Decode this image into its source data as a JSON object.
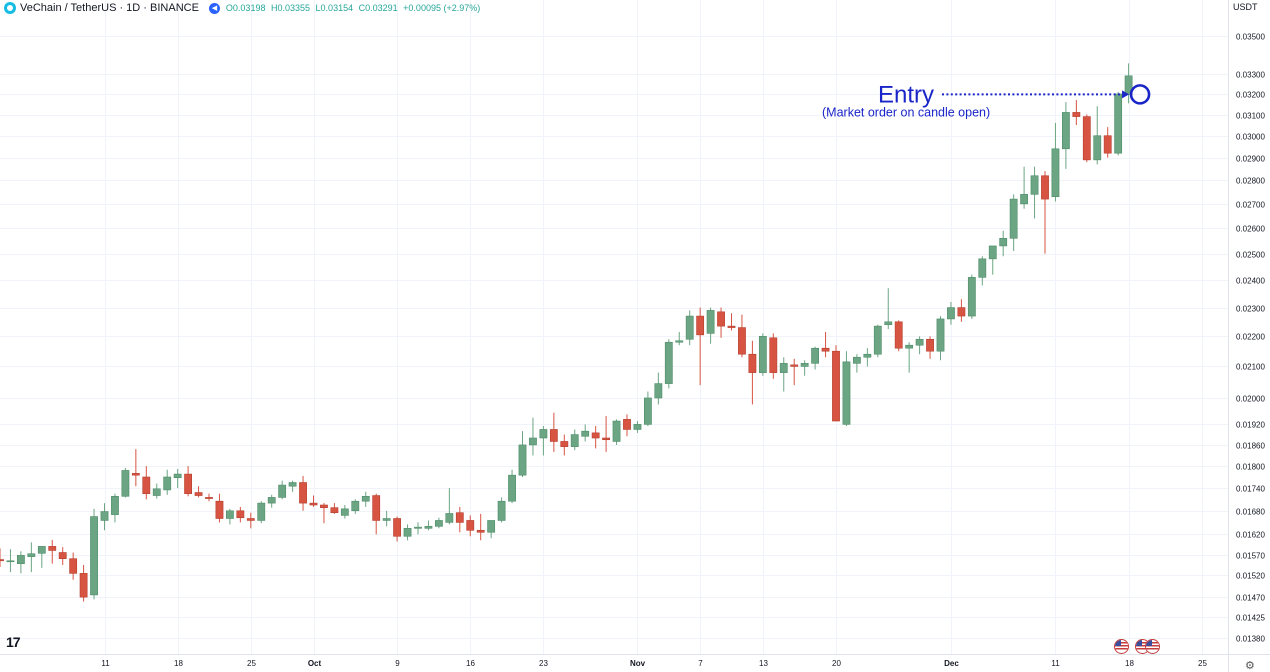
{
  "header": {
    "symbol_title": "VeChain / TetherUS · 1D · BINANCE",
    "ohlc": {
      "open": "O0.03198",
      "high": "H0.03355",
      "low": "L0.03154",
      "close": "C0.03291",
      "change": "+0.00095 (+2.97%)"
    },
    "currency": "USDT",
    "symbol_icon": "vechain-logo-icon",
    "control_icon": "rewind-icon"
  },
  "footer": {
    "brand": "17",
    "settings_icon": "gear-icon",
    "event_icons": [
      "us-flag-icon",
      "us-flag-icon",
      "us-flag-icon"
    ]
  },
  "colors": {
    "up": "#6ba583",
    "down": "#d75442",
    "annotation": "#1a25c8",
    "grid": "#f0f3fa"
  },
  "chart_data": {
    "type": "candlestick",
    "y_scale": "log",
    "y_ticks": [
      "0.03500",
      "0.03300",
      "0.03200",
      "0.03100",
      "0.03000",
      "0.02900",
      "0.02800",
      "0.02700",
      "0.02600",
      "0.02500",
      "0.02400",
      "0.02300",
      "0.02200",
      "0.02100",
      "0.02000",
      "0.01920",
      "0.01860",
      "0.01800",
      "0.01740",
      "0.01680",
      "0.01620",
      "0.01570",
      "0.01520",
      "0.01470",
      "0.01425",
      "0.01380"
    ],
    "x_ticks": [
      "11",
      "18",
      "25",
      "Oct",
      "9",
      "16",
      "23",
      "Nov",
      "7",
      "13",
      "20",
      "Dec",
      "11",
      "18",
      "25"
    ],
    "x_tick_days": [
      10,
      17,
      24,
      30,
      38,
      45,
      52,
      61,
      67,
      73,
      80,
      91,
      101,
      108,
      115
    ],
    "start_date": "2023-09-01",
    "candles": [
      {
        "o": 0.01558,
        "h": 0.01585,
        "l": 0.0154,
        "c": 0.01555
      },
      {
        "o": 0.01553,
        "h": 0.01583,
        "l": 0.01528,
        "c": 0.01555
      },
      {
        "o": 0.01548,
        "h": 0.01578,
        "l": 0.01525,
        "c": 0.01568
      },
      {
        "o": 0.01565,
        "h": 0.016,
        "l": 0.01528,
        "c": 0.01572
      },
      {
        "o": 0.01573,
        "h": 0.0159,
        "l": 0.01538,
        "c": 0.0159
      },
      {
        "o": 0.0159,
        "h": 0.01606,
        "l": 0.01548,
        "c": 0.0158
      },
      {
        "o": 0.01575,
        "h": 0.01588,
        "l": 0.01545,
        "c": 0.0156
      },
      {
        "o": 0.0156,
        "h": 0.01575,
        "l": 0.0151,
        "c": 0.01525
      },
      {
        "o": 0.01525,
        "h": 0.01545,
        "l": 0.0146,
        "c": 0.0147
      },
      {
        "o": 0.01475,
        "h": 0.01685,
        "l": 0.01465,
        "c": 0.01665
      },
      {
        "o": 0.01655,
        "h": 0.017,
        "l": 0.0163,
        "c": 0.01678
      },
      {
        "o": 0.0167,
        "h": 0.01725,
        "l": 0.0165,
        "c": 0.01718
      },
      {
        "o": 0.01718,
        "h": 0.01795,
        "l": 0.01715,
        "c": 0.01788
      },
      {
        "o": 0.0178,
        "h": 0.01848,
        "l": 0.01745,
        "c": 0.01775
      },
      {
        "o": 0.0177,
        "h": 0.018,
        "l": 0.0171,
        "c": 0.01725
      },
      {
        "o": 0.0172,
        "h": 0.01752,
        "l": 0.01712,
        "c": 0.01738
      },
      {
        "o": 0.01735,
        "h": 0.0179,
        "l": 0.01722,
        "c": 0.0177
      },
      {
        "o": 0.01768,
        "h": 0.01792,
        "l": 0.0174,
        "c": 0.01778
      },
      {
        "o": 0.01778,
        "h": 0.018,
        "l": 0.01718,
        "c": 0.01725
      },
      {
        "o": 0.01728,
        "h": 0.01745,
        "l": 0.01715,
        "c": 0.0172
      },
      {
        "o": 0.01715,
        "h": 0.01725,
        "l": 0.01705,
        "c": 0.01712
      },
      {
        "o": 0.01705,
        "h": 0.01725,
        "l": 0.0165,
        "c": 0.0166
      },
      {
        "o": 0.0166,
        "h": 0.01685,
        "l": 0.01645,
        "c": 0.0168
      },
      {
        "o": 0.0168,
        "h": 0.0169,
        "l": 0.0165,
        "c": 0.01662
      },
      {
        "o": 0.0166,
        "h": 0.01675,
        "l": 0.01635,
        "c": 0.01655
      },
      {
        "o": 0.01655,
        "h": 0.01705,
        "l": 0.01648,
        "c": 0.017
      },
      {
        "o": 0.017,
        "h": 0.01722,
        "l": 0.01688,
        "c": 0.01715
      },
      {
        "o": 0.01715,
        "h": 0.0176,
        "l": 0.0171,
        "c": 0.01748
      },
      {
        "o": 0.01745,
        "h": 0.0176,
        "l": 0.0173,
        "c": 0.01755
      },
      {
        "o": 0.01755,
        "h": 0.01773,
        "l": 0.0168,
        "c": 0.017
      },
      {
        "o": 0.017,
        "h": 0.0172,
        "l": 0.0169,
        "c": 0.01695
      },
      {
        "o": 0.01695,
        "h": 0.017,
        "l": 0.01648,
        "c": 0.01688
      },
      {
        "o": 0.01688,
        "h": 0.017,
        "l": 0.01672,
        "c": 0.01675
      },
      {
        "o": 0.01668,
        "h": 0.01695,
        "l": 0.0166,
        "c": 0.01685
      },
      {
        "o": 0.0168,
        "h": 0.0171,
        "l": 0.01672,
        "c": 0.01705
      },
      {
        "o": 0.01705,
        "h": 0.0173,
        "l": 0.0169,
        "c": 0.01718
      },
      {
        "o": 0.0172,
        "h": 0.01725,
        "l": 0.0162,
        "c": 0.01655
      },
      {
        "o": 0.01655,
        "h": 0.0168,
        "l": 0.0164,
        "c": 0.0166
      },
      {
        "o": 0.0166,
        "h": 0.01665,
        "l": 0.01602,
        "c": 0.01615
      },
      {
        "o": 0.01615,
        "h": 0.01645,
        "l": 0.01605,
        "c": 0.01635
      },
      {
        "o": 0.01635,
        "h": 0.0165,
        "l": 0.0162,
        "c": 0.01638
      },
      {
        "o": 0.01635,
        "h": 0.01655,
        "l": 0.0163,
        "c": 0.0164
      },
      {
        "o": 0.0164,
        "h": 0.01662,
        "l": 0.01635,
        "c": 0.01655
      },
      {
        "o": 0.0165,
        "h": 0.0174,
        "l": 0.01645,
        "c": 0.01673
      },
      {
        "o": 0.01675,
        "h": 0.0169,
        "l": 0.01625,
        "c": 0.0165
      },
      {
        "o": 0.01655,
        "h": 0.01668,
        "l": 0.01615,
        "c": 0.0163
      },
      {
        "o": 0.0163,
        "h": 0.01672,
        "l": 0.01605,
        "c": 0.01625
      },
      {
        "o": 0.01625,
        "h": 0.01655,
        "l": 0.0161,
        "c": 0.01655
      },
      {
        "o": 0.01655,
        "h": 0.01715,
        "l": 0.0165,
        "c": 0.01705
      },
      {
        "o": 0.01705,
        "h": 0.0179,
        "l": 0.017,
        "c": 0.01775
      },
      {
        "o": 0.01775,
        "h": 0.019,
        "l": 0.0177,
        "c": 0.0186
      },
      {
        "o": 0.0186,
        "h": 0.0194,
        "l": 0.0183,
        "c": 0.0188
      },
      {
        "o": 0.0188,
        "h": 0.01915,
        "l": 0.0183,
        "c": 0.01905
      },
      {
        "o": 0.01905,
        "h": 0.01955,
        "l": 0.0184,
        "c": 0.0187
      },
      {
        "o": 0.0187,
        "h": 0.0189,
        "l": 0.0183,
        "c": 0.01855
      },
      {
        "o": 0.01855,
        "h": 0.01905,
        "l": 0.01845,
        "c": 0.0189
      },
      {
        "o": 0.01885,
        "h": 0.0192,
        "l": 0.0187,
        "c": 0.019
      },
      {
        "o": 0.01895,
        "h": 0.01915,
        "l": 0.0185,
        "c": 0.0188
      },
      {
        "o": 0.0188,
        "h": 0.01945,
        "l": 0.0184,
        "c": 0.01875
      },
      {
        "o": 0.0187,
        "h": 0.01935,
        "l": 0.0186,
        "c": 0.0193
      },
      {
        "o": 0.01935,
        "h": 0.0195,
        "l": 0.01885,
        "c": 0.01905
      },
      {
        "o": 0.01905,
        "h": 0.0193,
        "l": 0.01895,
        "c": 0.0192
      },
      {
        "o": 0.0192,
        "h": 0.0202,
        "l": 0.01915,
        "c": 0.02
      },
      {
        "o": 0.02,
        "h": 0.0208,
        "l": 0.0198,
        "c": 0.02045
      },
      {
        "o": 0.02045,
        "h": 0.0219,
        "l": 0.0203,
        "c": 0.0218
      },
      {
        "o": 0.0218,
        "h": 0.02215,
        "l": 0.0217,
        "c": 0.02185
      },
      {
        "o": 0.0219,
        "h": 0.0229,
        "l": 0.0217,
        "c": 0.0227
      },
      {
        "o": 0.0227,
        "h": 0.023,
        "l": 0.0204,
        "c": 0.02205
      },
      {
        "o": 0.0221,
        "h": 0.023,
        "l": 0.02175,
        "c": 0.0229
      },
      {
        "o": 0.02285,
        "h": 0.023,
        "l": 0.02195,
        "c": 0.02235
      },
      {
        "o": 0.02235,
        "h": 0.0228,
        "l": 0.0222,
        "c": 0.0223
      },
      {
        "o": 0.0223,
        "h": 0.02275,
        "l": 0.0213,
        "c": 0.0214
      },
      {
        "o": 0.0214,
        "h": 0.02185,
        "l": 0.0198,
        "c": 0.0208
      },
      {
        "o": 0.0208,
        "h": 0.0221,
        "l": 0.0207,
        "c": 0.022
      },
      {
        "o": 0.02195,
        "h": 0.0221,
        "l": 0.0206,
        "c": 0.0208
      },
      {
        "o": 0.0208,
        "h": 0.0213,
        "l": 0.0202,
        "c": 0.0211
      },
      {
        "o": 0.02105,
        "h": 0.02125,
        "l": 0.0204,
        "c": 0.021
      },
      {
        "o": 0.021,
        "h": 0.0212,
        "l": 0.0207,
        "c": 0.0211
      },
      {
        "o": 0.0211,
        "h": 0.02165,
        "l": 0.0209,
        "c": 0.0216
      },
      {
        "o": 0.0216,
        "h": 0.02215,
        "l": 0.0213,
        "c": 0.0215
      },
      {
        "o": 0.0215,
        "h": 0.0217,
        "l": 0.0193,
        "c": 0.0193
      },
      {
        "o": 0.0192,
        "h": 0.0215,
        "l": 0.01915,
        "c": 0.02115
      },
      {
        "o": 0.0211,
        "h": 0.0214,
        "l": 0.0208,
        "c": 0.0213
      },
      {
        "o": 0.0213,
        "h": 0.0216,
        "l": 0.021,
        "c": 0.0214
      },
      {
        "o": 0.0214,
        "h": 0.0224,
        "l": 0.0213,
        "c": 0.02235
      },
      {
        "o": 0.0224,
        "h": 0.0237,
        "l": 0.02225,
        "c": 0.0225
      },
      {
        "o": 0.0225,
        "h": 0.02255,
        "l": 0.0215,
        "c": 0.0216
      },
      {
        "o": 0.0216,
        "h": 0.0218,
        "l": 0.0208,
        "c": 0.0217
      },
      {
        "o": 0.0217,
        "h": 0.022,
        "l": 0.0214,
        "c": 0.0219
      },
      {
        "o": 0.0219,
        "h": 0.022,
        "l": 0.02125,
        "c": 0.0215
      },
      {
        "o": 0.0215,
        "h": 0.0227,
        "l": 0.0212,
        "c": 0.0226
      },
      {
        "o": 0.0226,
        "h": 0.0232,
        "l": 0.0224,
        "c": 0.023
      },
      {
        "o": 0.023,
        "h": 0.0233,
        "l": 0.0225,
        "c": 0.0227
      },
      {
        "o": 0.0227,
        "h": 0.0242,
        "l": 0.0226,
        "c": 0.0241
      },
      {
        "o": 0.0241,
        "h": 0.0249,
        "l": 0.0238,
        "c": 0.0248
      },
      {
        "o": 0.0248,
        "h": 0.0253,
        "l": 0.0242,
        "c": 0.0253
      },
      {
        "o": 0.0253,
        "h": 0.0259,
        "l": 0.0249,
        "c": 0.0256
      },
      {
        "o": 0.0256,
        "h": 0.0274,
        "l": 0.0251,
        "c": 0.0272
      },
      {
        "o": 0.027,
        "h": 0.0286,
        "l": 0.0268,
        "c": 0.0274
      },
      {
        "o": 0.0274,
        "h": 0.0286,
        "l": 0.0264,
        "c": 0.0282
      },
      {
        "o": 0.0282,
        "h": 0.0284,
        "l": 0.025,
        "c": 0.0272
      },
      {
        "o": 0.0273,
        "h": 0.0306,
        "l": 0.0271,
        "c": 0.0294
      },
      {
        "o": 0.0294,
        "h": 0.0316,
        "l": 0.0285,
        "c": 0.0311
      },
      {
        "o": 0.0311,
        "h": 0.0317,
        "l": 0.0305,
        "c": 0.0309
      },
      {
        "o": 0.0309,
        "h": 0.031,
        "l": 0.0288,
        "c": 0.0289
      },
      {
        "o": 0.0289,
        "h": 0.0314,
        "l": 0.0287,
        "c": 0.03
      },
      {
        "o": 0.03,
        "h": 0.0304,
        "l": 0.029,
        "c": 0.0292
      },
      {
        "o": 0.0292,
        "h": 0.0321,
        "l": 0.0291,
        "c": 0.032
      },
      {
        "o": 0.03198,
        "h": 0.03355,
        "l": 0.03154,
        "c": 0.03291
      }
    ],
    "annotations": {
      "entry_label": "Entry",
      "entry_note": "(Market order on candle open)",
      "entry_candle_index": 109,
      "entry_price": 0.03198
    }
  }
}
